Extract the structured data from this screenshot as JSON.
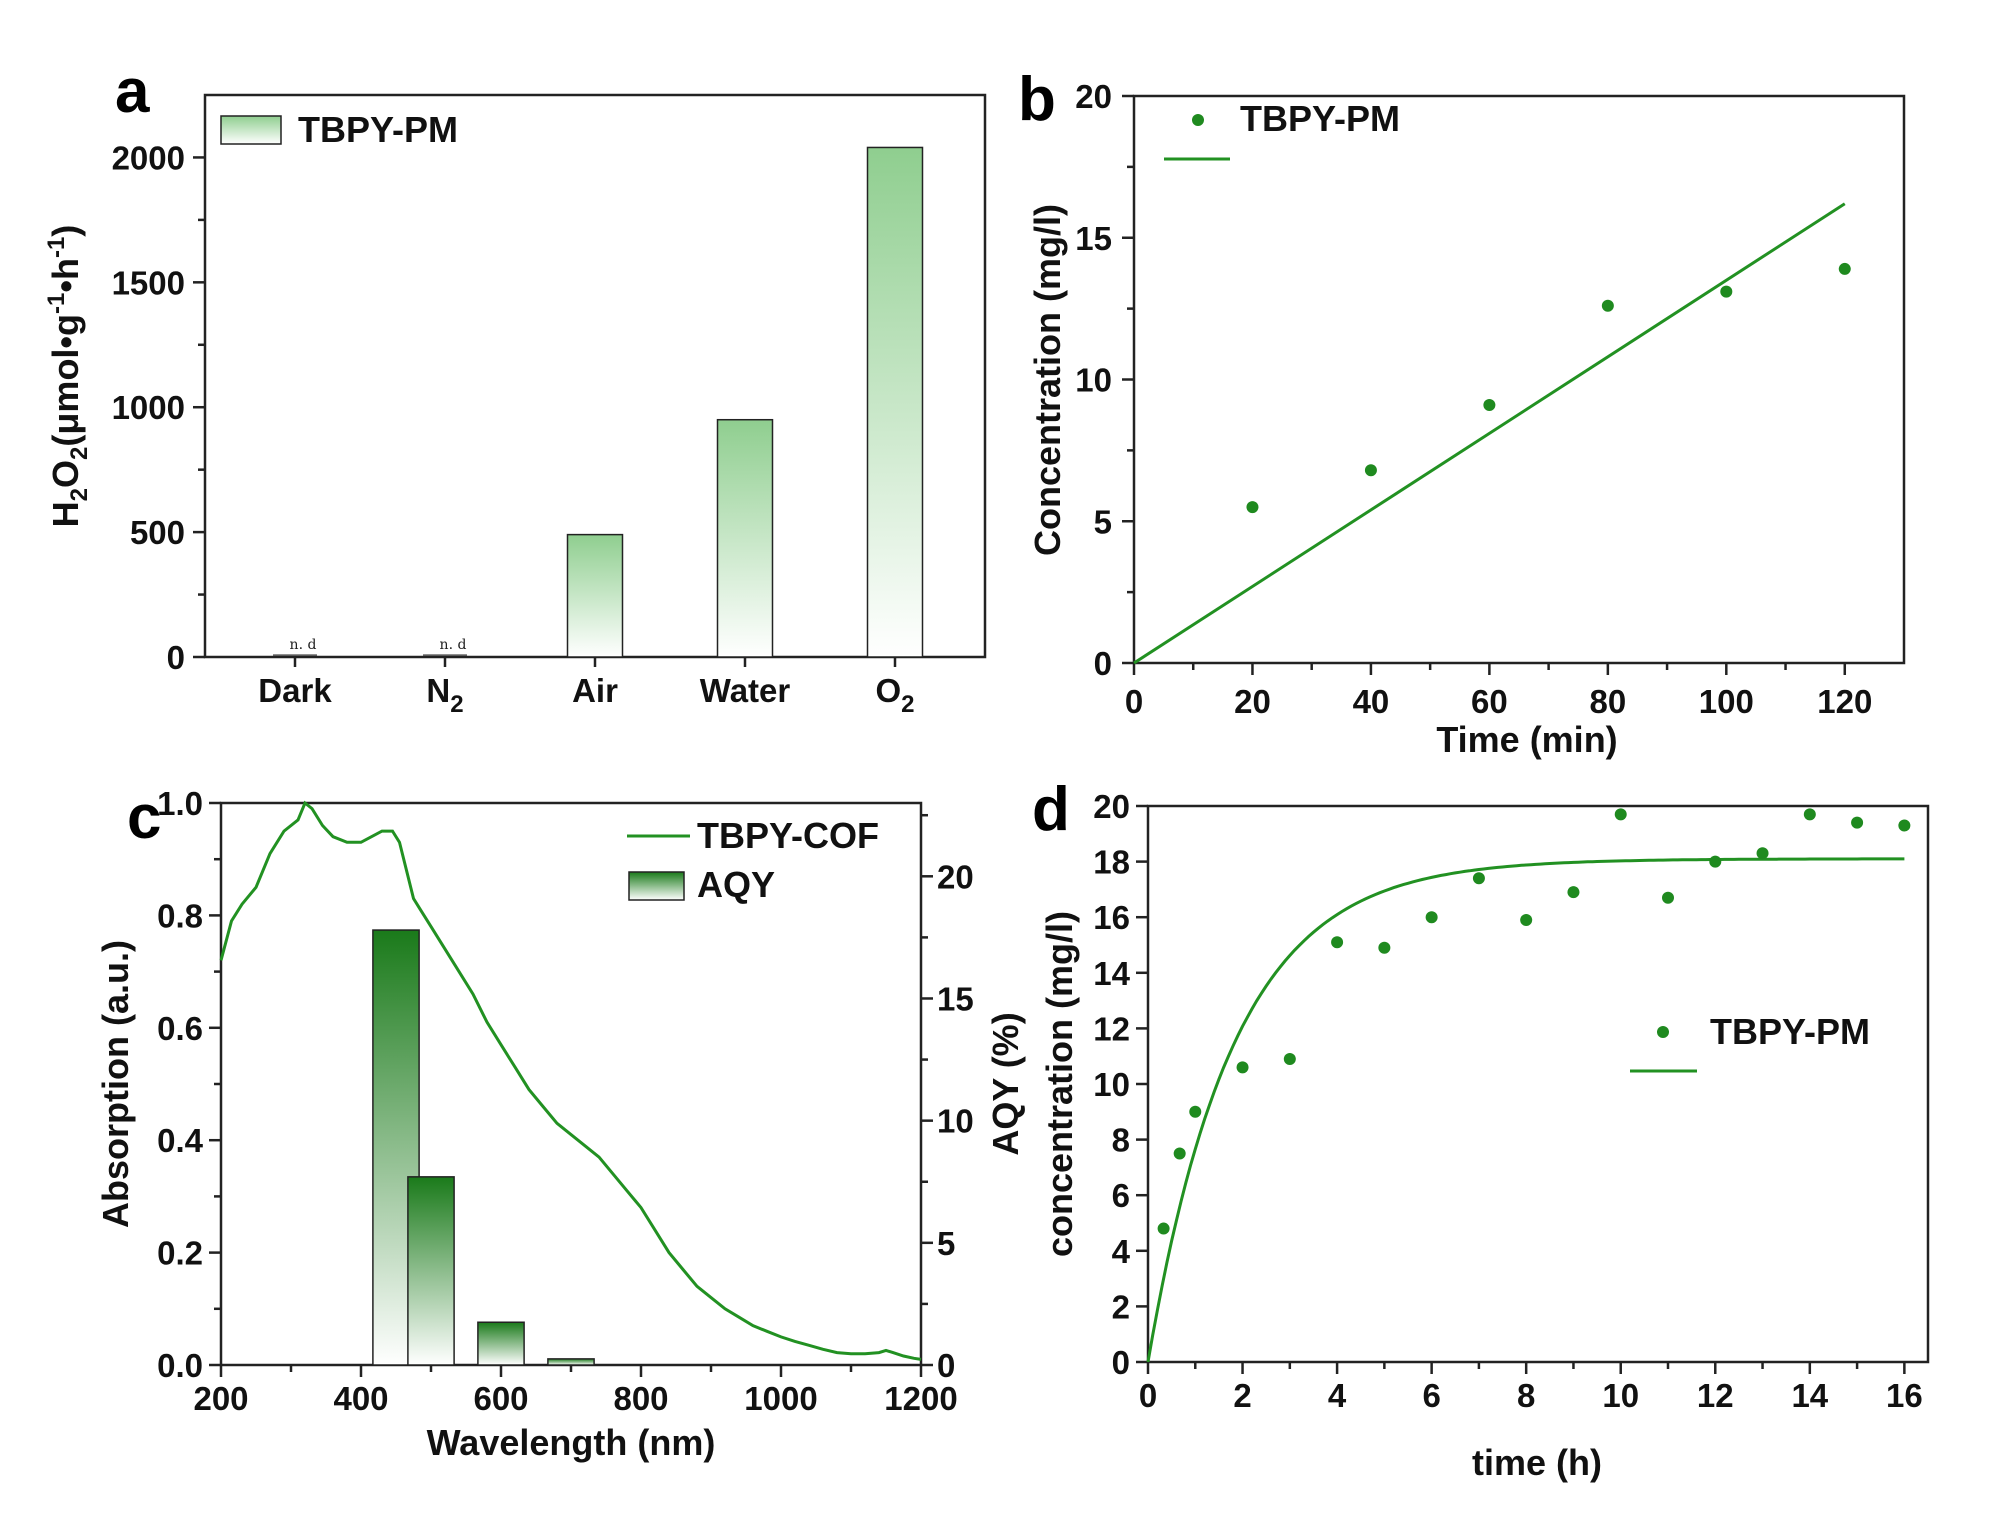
{
  "colors": {
    "series": "#229122",
    "bar_top_a": "#8fce8f",
    "bar_top_c": "#1a7a1a"
  },
  "chart_data": [
    {
      "panel": "a",
      "type": "bar",
      "categories": [
        "Dark",
        "N2",
        "Air",
        "Water",
        "O2"
      ],
      "category_labels": [
        {
          "main": "Dark",
          "sub": ""
        },
        {
          "main": "N",
          "sub": "2"
        },
        {
          "main": "Air",
          "sub": ""
        },
        {
          "main": "Water",
          "sub": ""
        },
        {
          "main": "O",
          "sub": "2"
        }
      ],
      "values": [
        0,
        0,
        490,
        950,
        2040
      ],
      "annotations": [
        "n. d",
        "n. d",
        "",
        "",
        ""
      ],
      "legend": [
        "TBPY-PM"
      ],
      "ylabel": "H2O2(μmol·g-1·h-1)",
      "ylabel_parts": {
        "h": "H",
        "h_sub": "2",
        "o": "O",
        "o_sub": "2",
        "unit_a": "(μmol•g",
        "exp1": "-1",
        "unit_b": "•h",
        "exp2": "-1",
        "close": ")"
      },
      "ylim": [
        0,
        2250
      ],
      "yticks": [
        0,
        500,
        1000,
        1500,
        2000
      ]
    },
    {
      "panel": "b",
      "type": "scatter",
      "x": [
        20,
        40,
        60,
        80,
        100,
        120
      ],
      "y": [
        5.5,
        6.8,
        9.1,
        12.6,
        13.1,
        13.9
      ],
      "fit_line": {
        "x": [
          0,
          120
        ],
        "y": [
          0,
          16.2
        ]
      },
      "legend": [
        "TBPY-PM"
      ],
      "xlabel": "Time (min)",
      "ylabel": "Concentration (mg/l)",
      "xlim": [
        0,
        130
      ],
      "ylim": [
        0,
        20
      ],
      "xticks": [
        0,
        20,
        40,
        60,
        80,
        100,
        120
      ],
      "yticks": [
        0,
        5,
        10,
        15,
        20
      ]
    },
    {
      "panel": "c",
      "type": "line",
      "series": [
        {
          "name": "TBPY-COF",
          "x": [
            200,
            215,
            230,
            250,
            270,
            290,
            310,
            320,
            330,
            345,
            360,
            380,
            400,
            415,
            430,
            445,
            455,
            465,
            475,
            485,
            500,
            520,
            540,
            560,
            580,
            600,
            620,
            640,
            660,
            680,
            700,
            720,
            740,
            760,
            780,
            800,
            820,
            840,
            860,
            880,
            900,
            920,
            940,
            960,
            980,
            1000,
            1020,
            1040,
            1060,
            1080,
            1100,
            1120,
            1140,
            1150,
            1160,
            1175,
            1190,
            1200
          ],
          "y": [
            0.72,
            0.79,
            0.82,
            0.85,
            0.91,
            0.95,
            0.97,
            1.0,
            0.99,
            0.96,
            0.94,
            0.93,
            0.93,
            0.94,
            0.95,
            0.95,
            0.93,
            0.88,
            0.83,
            0.81,
            0.78,
            0.74,
            0.7,
            0.66,
            0.61,
            0.57,
            0.53,
            0.49,
            0.46,
            0.43,
            0.41,
            0.39,
            0.37,
            0.34,
            0.31,
            0.28,
            0.24,
            0.2,
            0.17,
            0.14,
            0.12,
            0.1,
            0.085,
            0.07,
            0.06,
            0.05,
            0.042,
            0.035,
            0.028,
            0.022,
            0.02,
            0.02,
            0.022,
            0.026,
            0.022,
            0.016,
            0.012,
            0.01
          ]
        }
      ],
      "bars": {
        "name": "AQY",
        "x": [
          450,
          500,
          600,
          700
        ],
        "width": 66,
        "values": [
          17.8,
          7.7,
          1.75,
          0.25
        ]
      },
      "legend": [
        "TBPY-COF",
        "AQY"
      ],
      "xlabel": "Wavelength (nm)",
      "ylabel": "Absorption (a.u.)",
      "y2label": "AQY (%)",
      "xlim": [
        200,
        1200
      ],
      "ylim": [
        0,
        1.0
      ],
      "y2lim": [
        0,
        23
      ],
      "xticks": [
        200,
        400,
        600,
        800,
        1000,
        1200
      ],
      "yticks": [
        0.0,
        0.2,
        0.4,
        0.6,
        0.8,
        1.0
      ],
      "y2ticks": [
        0,
        5,
        10,
        15,
        20
      ]
    },
    {
      "panel": "d",
      "type": "scatter",
      "x": [
        0.33,
        0.67,
        1,
        2,
        3,
        4,
        5,
        6,
        7,
        8,
        9,
        10,
        11,
        12,
        13,
        14,
        15,
        16
      ],
      "y": [
        4.8,
        7.5,
        9.0,
        10.6,
        10.9,
        15.1,
        14.9,
        16.0,
        17.4,
        15.9,
        16.9,
        19.7,
        16.7,
        18.0,
        18.3,
        19.7,
        19.4,
        19.3
      ],
      "fit_curve": {
        "model": "y = A(1 - exp(-k x))",
        "A": 18.1,
        "k": 0.55,
        "xmax": 16
      },
      "legend": [
        "TBPY-PM"
      ],
      "xlabel": "time (h)",
      "ylabel": "concentration (mg/l)",
      "xlim": [
        0,
        16.5
      ],
      "ylim": [
        0,
        20
      ],
      "xticks": [
        0,
        2,
        4,
        6,
        8,
        10,
        12,
        14,
        16
      ],
      "yticks": [
        0,
        2,
        4,
        6,
        8,
        10,
        12,
        14,
        16,
        18,
        20
      ]
    }
  ],
  "panels": [
    "a",
    "b",
    "c",
    "d"
  ]
}
